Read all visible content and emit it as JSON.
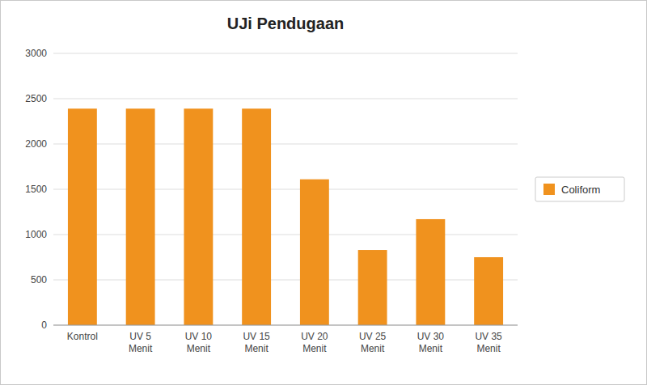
{
  "chart_data": {
    "type": "bar",
    "title": "UJi Pendugaan",
    "categories": [
      "Kontrol",
      "UV 5\nMenit",
      "UV 10\nMenit",
      "UV 15\nMenit",
      "UV 20\nMenit",
      "UV 25\nMenit",
      "UV 30\nMenit",
      "UV 35\nMenit"
    ],
    "series": [
      {
        "name": "Coliform",
        "color": "#F0921E",
        "values": [
          2390,
          2390,
          2390,
          2390,
          1610,
          830,
          1170,
          750
        ]
      }
    ],
    "ylim": [
      0,
      3000
    ],
    "yticks": [
      0,
      500,
      1000,
      1500,
      2000,
      2500,
      3000
    ],
    "grid": true,
    "legend": "right"
  }
}
